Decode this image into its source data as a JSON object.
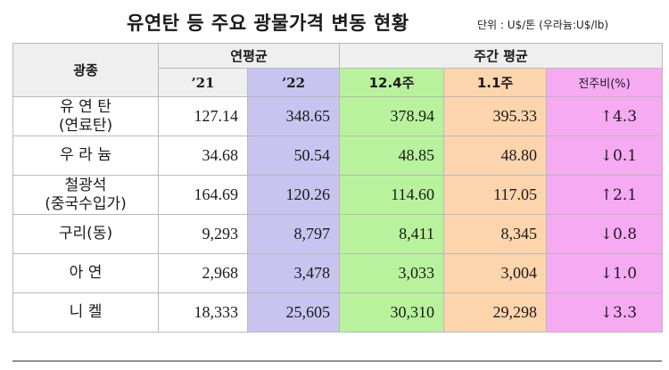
{
  "title": "유연탄 등 주요 광물가격 변동 현황",
  "unit_note": "단위 : U$/톤 (우라늄:U$/lb)",
  "header": {
    "mineral": "광종",
    "annual_avg": "연평균",
    "weekly_avg": "주간 평균",
    "y2021": "’21",
    "y2022": "’22",
    "week1": "12.4주",
    "week2": "1.1주",
    "change": "전주비(%)"
  },
  "rows": [
    {
      "name_line1": "유 연 탄",
      "name_line2": "(연료탄)",
      "y2021": "127.14",
      "y2022": "348.65",
      "week1": "378.94",
      "week2": "395.33",
      "change": "↑4.3"
    },
    {
      "name_line1": "우 라 늄",
      "name_line2": "",
      "y2021": "34.68",
      "y2022": "50.54",
      "week1": "48.85",
      "week2": "48.80",
      "change": "↓0.1"
    },
    {
      "name_line1": "철광석",
      "name_line2": "(중국수입가)",
      "y2021": "164.69",
      "y2022": "120.26",
      "week1": "114.60",
      "week2": "117.05",
      "change": "↑2.1"
    },
    {
      "name_line1": "구리(동)",
      "name_line2": "",
      "y2021": "9,293",
      "y2022": "8,797",
      "week1": "8,411",
      "week2": "8,345",
      "change": "↓0.8"
    },
    {
      "name_line1": "아 연",
      "name_line2": "",
      "y2021": "2,968",
      "y2022": "3,478",
      "week1": "3,033",
      "week2": "3,004",
      "change": "↓1.0"
    },
    {
      "name_line1": "니 켈",
      "name_line2": "",
      "y2021": "18,333",
      "y2022": "25,605",
      "week1": "30,310",
      "week2": "29,298",
      "change": "↓3.3"
    }
  ],
  "colors": {
    "header_bg": "#efefef",
    "col_2022": "#c9c3f0",
    "col_week1": "#b9f29c",
    "col_week2": "#fcd5ad",
    "col_change": "#f6aaf2"
  }
}
